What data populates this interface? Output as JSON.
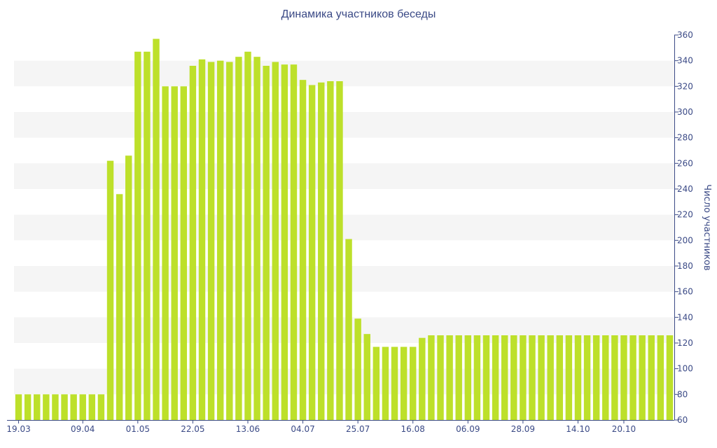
{
  "chart_data": {
    "type": "bar",
    "title": "Динамика участников беседы",
    "xlabel": "",
    "ylabel": "Число участников",
    "ylim": [
      60,
      360
    ],
    "y_ticks": [
      60,
      80,
      100,
      120,
      140,
      160,
      180,
      200,
      220,
      240,
      260,
      280,
      300,
      320,
      340,
      360
    ],
    "x_tick_labels": [
      "19.03",
      "09.04",
      "01.05",
      "22.05",
      "13.06",
      "04.07",
      "25.07",
      "16.08",
      "06.09",
      "28.09",
      "14.10",
      "20.10"
    ],
    "x_tick_positions": [
      0,
      7,
      13,
      19,
      25,
      31,
      37,
      43,
      49,
      55,
      61,
      66
    ],
    "grid": "horizontal bands",
    "legend": "none",
    "values": [
      80,
      80,
      80,
      80,
      80,
      80,
      80,
      80,
      80,
      80,
      262,
      236,
      266,
      347,
      347,
      357,
      320,
      320,
      320,
      336,
      341,
      339,
      340,
      339,
      343,
      347,
      343,
      336,
      339,
      337,
      337,
      325,
      321,
      323,
      324,
      324,
      201,
      139,
      127,
      117,
      117,
      117,
      117,
      117,
      124,
      126,
      126,
      126,
      126,
      126,
      126,
      126,
      126,
      126,
      126,
      126,
      126,
      126,
      126,
      126,
      126,
      126,
      126,
      126,
      126,
      126,
      126,
      126,
      126,
      126,
      126,
      126
    ]
  },
  "colors": {
    "bar": "#bde02a",
    "band": "#f5f5f5",
    "axis": "#3b4a86",
    "text": "#3b4a86"
  }
}
